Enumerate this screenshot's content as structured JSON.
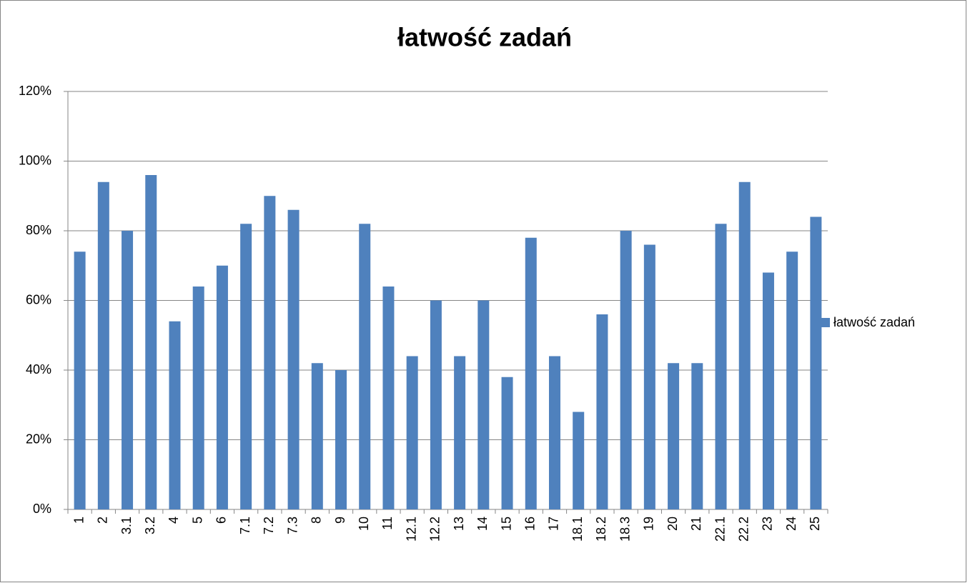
{
  "chart_data": {
    "type": "bar",
    "title": "łatwość zadań",
    "categories": [
      "1",
      "2",
      "3.1",
      "3.2",
      "4",
      "5",
      "6",
      "7.1",
      "7.2",
      "7.3",
      "8",
      "9",
      "10",
      "11",
      "12.1",
      "12.2",
      "13",
      "14",
      "15",
      "16",
      "17",
      "18.1",
      "18.2",
      "18.3",
      "19",
      "20",
      "21",
      "22.1",
      "22.2",
      "23",
      "24",
      "25"
    ],
    "series": [
      {
        "name": "łatwość zadań",
        "color": "#4f81bd",
        "values": [
          74,
          94,
          80,
          96,
          54,
          64,
          70,
          82,
          90,
          86,
          42,
          40,
          82,
          64,
          44,
          60,
          44,
          60,
          38,
          78,
          44,
          28,
          56,
          80,
          76,
          42,
          42,
          82,
          94,
          68,
          74,
          84
        ]
      }
    ],
    "ylim": [
      0,
      120
    ],
    "yticks": [
      {
        "value": 0,
        "label": "0%"
      },
      {
        "value": 20,
        "label": "20%"
      },
      {
        "value": 40,
        "label": "40%"
      },
      {
        "value": 60,
        "label": "60%"
      },
      {
        "value": 80,
        "label": "80%"
      },
      {
        "value": 100,
        "label": "100%"
      },
      {
        "value": 120,
        "label": "120%"
      }
    ],
    "grid": true,
    "legend": "right"
  }
}
